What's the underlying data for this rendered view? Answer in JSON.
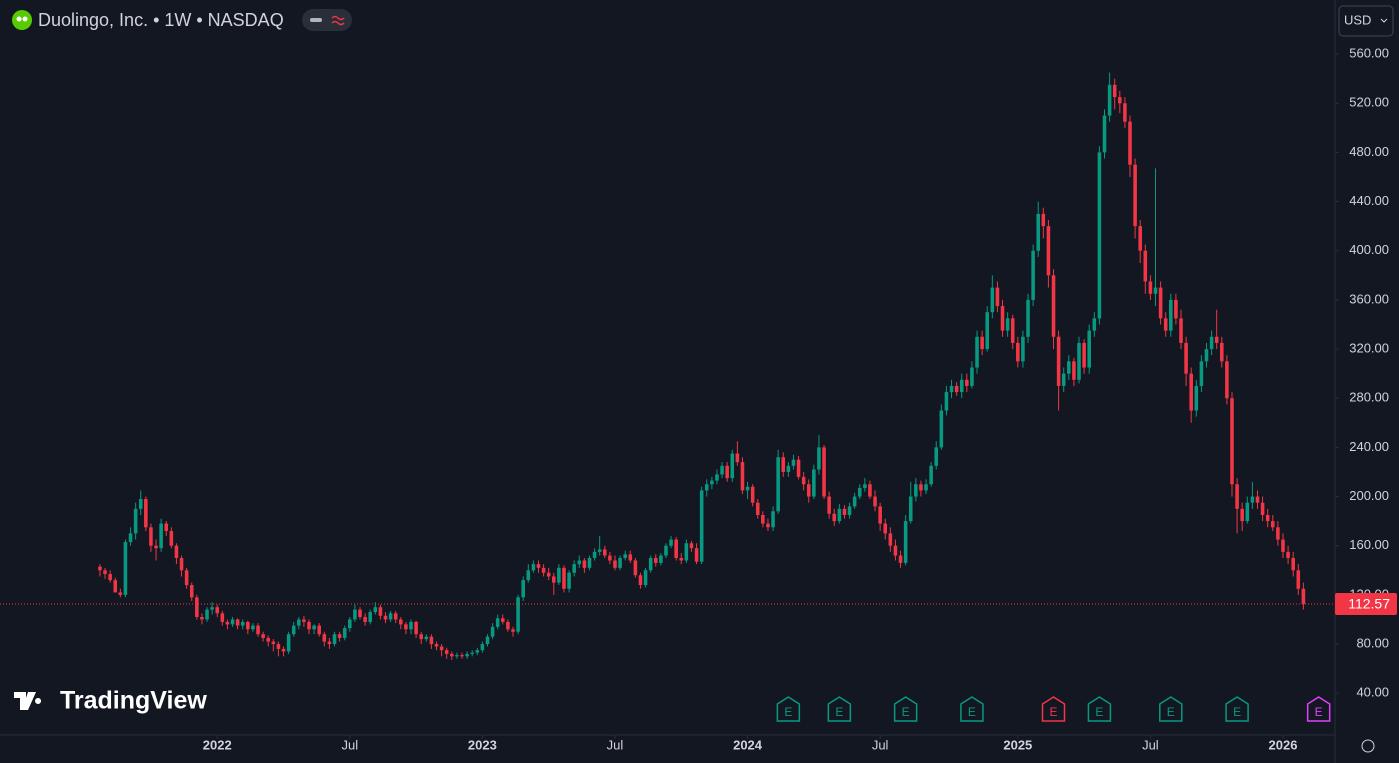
{
  "chart_data": {
    "type": "candlestick",
    "title": "Duolingo, Inc. • 1W • NASDAQ",
    "currency": "USD",
    "watermark": "TradingView",
    "up_color": "#089981",
    "down_color": "#f23645",
    "grid": false,
    "xlim": [
      -19.6,
      242.2
    ],
    "xticks": [
      {
        "value": 23,
        "label": "2022"
      },
      {
        "value": 49,
        "label": "Jul"
      },
      {
        "value": 75,
        "label": "2023"
      },
      {
        "value": 101,
        "label": "Jul"
      },
      {
        "value": 127,
        "label": "2024"
      },
      {
        "value": 153,
        "label": "Jul"
      },
      {
        "value": 180,
        "label": "2025"
      },
      {
        "value": 206,
        "label": "Jul"
      },
      {
        "value": 232,
        "label": "2026"
      }
    ],
    "ylim": [
      6,
      604
    ],
    "yticks": [
      {
        "value": 40,
        "label": "40.00"
      },
      {
        "value": 80,
        "label": "80.00"
      },
      {
        "value": 120,
        "label": "120.00"
      },
      {
        "value": 160,
        "label": "160.00"
      },
      {
        "value": 200,
        "label": "200.00"
      },
      {
        "value": 240,
        "label": "240.00"
      },
      {
        "value": 280,
        "label": "280.00"
      },
      {
        "value": 320,
        "label": "320.00"
      },
      {
        "value": 360,
        "label": "360.00"
      },
      {
        "value": 400,
        "label": "400.00"
      },
      {
        "value": 440,
        "label": "440.00"
      },
      {
        "value": 480,
        "label": "480.00"
      },
      {
        "value": 520,
        "label": "520.00"
      },
      {
        "value": 560,
        "label": "560.00"
      }
    ],
    "open": [
      143,
      140,
      137,
      132,
      122,
      120,
      163,
      170,
      190,
      198,
      175,
      160,
      158,
      178,
      172,
      160,
      150,
      140,
      128,
      118,
      102,
      100,
      108,
      110,
      105,
      98,
      96,
      100,
      95,
      98,
      92,
      95,
      88,
      85,
      82,
      80,
      76,
      74,
      88,
      95,
      100,
      98,
      92,
      95,
      88,
      82,
      80,
      88,
      85,
      93,
      100,
      108,
      102,
      98,
      106,
      110,
      103,
      100,
      105,
      100,
      96,
      92,
      98,
      88,
      84,
      86,
      80,
      78,
      75,
      72,
      70,
      71,
      70,
      72,
      73,
      75,
      80,
      86,
      94,
      101,
      98,
      92,
      90,
      118,
      132,
      140,
      145,
      142,
      138,
      135,
      130,
      142,
      125,
      138,
      145,
      148,
      142,
      150,
      155,
      157,
      152,
      148,
      142,
      150,
      153,
      148,
      136,
      128,
      140,
      150,
      146,
      152,
      160,
      165,
      150,
      148,
      162,
      158,
      147,
      205,
      210,
      213,
      218,
      225,
      215,
      235,
      228,
      205,
      208,
      195,
      185,
      178,
      175,
      188,
      232,
      220,
      225,
      230,
      216,
      210,
      200,
      222,
      240,
      200,
      186,
      180,
      190,
      185,
      192,
      200,
      207,
      210,
      200,
      192,
      178,
      170,
      160,
      152,
      146,
      180,
      200,
      210,
      205,
      210,
      225,
      240,
      270,
      285,
      290,
      285,
      295,
      290,
      305,
      330,
      320,
      350,
      370,
      355,
      335,
      345,
      325,
      310,
      330,
      360,
      400,
      430,
      420,
      380,
      330,
      290,
      300,
      310,
      295,
      325,
      305,
      335,
      345,
      480,
      510,
      535,
      525,
      520,
      505,
      470,
      420,
      400,
      375,
      365,
      370,
      345,
      335,
      360,
      345,
      325,
      300,
      270,
      290,
      310,
      320,
      330,
      325,
      310,
      280,
      210,
      190,
      180,
      195,
      200,
      195,
      185,
      180,
      175,
      165,
      155,
      150,
      140,
      125
    ],
    "high": [
      145,
      142,
      140,
      134,
      125,
      165,
      175,
      195,
      205,
      200,
      178,
      165,
      182,
      180,
      175,
      162,
      152,
      142,
      130,
      120,
      105,
      110,
      114,
      112,
      107,
      100,
      102,
      101,
      100,
      99,
      97,
      97,
      90,
      87,
      84,
      82,
      78,
      90,
      98,
      102,
      103,
      100,
      96,
      97,
      90,
      85,
      90,
      90,
      95,
      102,
      112,
      110,
      105,
      108,
      114,
      112,
      106,
      107,
      107,
      102,
      98,
      100,
      99,
      90,
      88,
      88,
      82,
      80,
      77,
      74,
      73,
      73,
      74,
      75,
      77,
      82,
      88,
      97,
      104,
      104,
      100,
      94,
      120,
      135,
      145,
      148,
      148,
      145,
      142,
      138,
      145,
      144,
      140,
      148,
      152,
      150,
      152,
      158,
      168,
      160,
      155,
      152,
      152,
      156,
      156,
      150,
      138,
      142,
      152,
      153,
      154,
      162,
      168,
      167,
      154,
      165,
      164,
      162,
      208,
      214,
      216,
      222,
      228,
      228,
      238,
      245,
      232,
      212,
      210,
      198,
      188,
      182,
      192,
      238,
      236,
      228,
      234,
      233,
      220,
      214,
      226,
      250,
      242,
      204,
      190,
      194,
      193,
      195,
      203,
      210,
      215,
      213,
      205,
      195,
      182,
      175,
      165,
      156,
      185,
      212,
      215,
      213,
      214,
      228,
      245,
      275,
      290,
      295,
      293,
      300,
      300,
      310,
      335,
      335,
      355,
      380,
      375,
      360,
      350,
      348,
      330,
      335,
      365,
      405,
      440,
      435,
      425,
      385,
      335,
      305,
      315,
      313,
      330,
      328,
      340,
      350,
      485,
      515,
      545,
      540,
      530,
      525,
      510,
      475,
      425,
      405,
      380,
      467,
      375,
      350,
      365,
      365,
      352,
      330,
      305,
      295,
      315,
      325,
      335,
      352,
      330,
      315,
      285,
      215,
      195,
      200,
      212,
      205,
      200,
      190,
      185,
      180,
      170,
      160,
      155,
      145,
      130
    ],
    "low": [
      135,
      133,
      130,
      122,
      118,
      118,
      160,
      165,
      185,
      172,
      155,
      148,
      155,
      168,
      158,
      145,
      135,
      125,
      115,
      100,
      96,
      98,
      104,
      102,
      95,
      92,
      94,
      92,
      92,
      88,
      90,
      86,
      82,
      78,
      74,
      70,
      70,
      72,
      86,
      92,
      94,
      88,
      88,
      86,
      78,
      76,
      78,
      82,
      83,
      90,
      98,
      100,
      95,
      96,
      104,
      100,
      97,
      98,
      97,
      92,
      88,
      88,
      85,
      80,
      82,
      76,
      75,
      70,
      68,
      67,
      68,
      68,
      68,
      70,
      71,
      73,
      78,
      84,
      92,
      96,
      90,
      86,
      88,
      115,
      130,
      138,
      138,
      135,
      132,
      120,
      128,
      122,
      122,
      135,
      142,
      138,
      140,
      148,
      152,
      150,
      145,
      140,
      140,
      148,
      146,
      134,
      125,
      126,
      138,
      143,
      144,
      150,
      158,
      148,
      145,
      146,
      155,
      145,
      145,
      200,
      206,
      210,
      215,
      212,
      212,
      225,
      202,
      198,
      192,
      182,
      175,
      172,
      172,
      186,
      216,
      216,
      222,
      214,
      205,
      195,
      198,
      218,
      198,
      182,
      176,
      178,
      182,
      182,
      190,
      198,
      204,
      198,
      188,
      172,
      165,
      155,
      148,
      142,
      144,
      178,
      196,
      200,
      202,
      208,
      222,
      238,
      266,
      280,
      282,
      280,
      285,
      288,
      300,
      315,
      318,
      345,
      350,
      330,
      330,
      320,
      305,
      305,
      325,
      355,
      395,
      410,
      370,
      320,
      270,
      285,
      295,
      290,
      292,
      300,
      300,
      330,
      340,
      475,
      505,
      515,
      512,
      500,
      460,
      410,
      390,
      365,
      360,
      355,
      340,
      330,
      330,
      340,
      320,
      290,
      260,
      265,
      285,
      305,
      315,
      320,
      305,
      275,
      200,
      170,
      172,
      178,
      190,
      190,
      180,
      175,
      172,
      160,
      150,
      145,
      135,
      120,
      108
    ],
    "close": [
      140,
      137,
      132,
      122,
      120,
      163,
      170,
      190,
      198,
      175,
      160,
      158,
      178,
      172,
      160,
      150,
      140,
      128,
      118,
      102,
      100,
      108,
      110,
      105,
      98,
      96,
      100,
      95,
      98,
      92,
      95,
      88,
      85,
      82,
      80,
      76,
      74,
      88,
      95,
      100,
      98,
      92,
      95,
      88,
      82,
      80,
      88,
      85,
      93,
      100,
      108,
      102,
      98,
      106,
      110,
      103,
      100,
      105,
      100,
      96,
      92,
      98,
      88,
      84,
      86,
      80,
      78,
      75,
      72,
      70,
      71,
      70,
      72,
      73,
      75,
      80,
      86,
      94,
      101,
      98,
      92,
      90,
      118,
      132,
      140,
      145,
      142,
      138,
      135,
      130,
      142,
      125,
      138,
      145,
      148,
      142,
      150,
      155,
      157,
      152,
      148,
      142,
      150,
      153,
      148,
      136,
      128,
      140,
      150,
      146,
      152,
      160,
      165,
      150,
      148,
      162,
      158,
      147,
      205,
      210,
      213,
      218,
      225,
      215,
      235,
      228,
      205,
      208,
      195,
      185,
      178,
      175,
      188,
      232,
      220,
      225,
      230,
      216,
      210,
      200,
      222,
      240,
      200,
      186,
      180,
      190,
      185,
      192,
      200,
      207,
      210,
      200,
      192,
      178,
      170,
      160,
      152,
      146,
      180,
      200,
      210,
      205,
      210,
      225,
      240,
      270,
      285,
      290,
      285,
      295,
      290,
      305,
      330,
      320,
      350,
      370,
      355,
      335,
      345,
      325,
      310,
      330,
      360,
      400,
      430,
      420,
      380,
      330,
      290,
      300,
      310,
      295,
      325,
      305,
      335,
      345,
      480,
      510,
      535,
      525,
      520,
      505,
      470,
      420,
      400,
      375,
      365,
      370,
      345,
      335,
      360,
      345,
      325,
      300,
      270,
      290,
      310,
      320,
      330,
      325,
      310,
      280,
      210,
      190,
      180,
      195,
      200,
      195,
      185,
      180,
      175,
      165,
      155,
      150,
      140,
      125,
      112.57
    ],
    "earnings": {
      "label": "E",
      "x": [
        135,
        145,
        158,
        171,
        187,
        196,
        210,
        223,
        239
      ],
      "colors": [
        "#089981",
        "#089981",
        "#089981",
        "#089981",
        "#f23645",
        "#089981",
        "#089981",
        "#089981",
        "#e040fb"
      ]
    }
  }
}
